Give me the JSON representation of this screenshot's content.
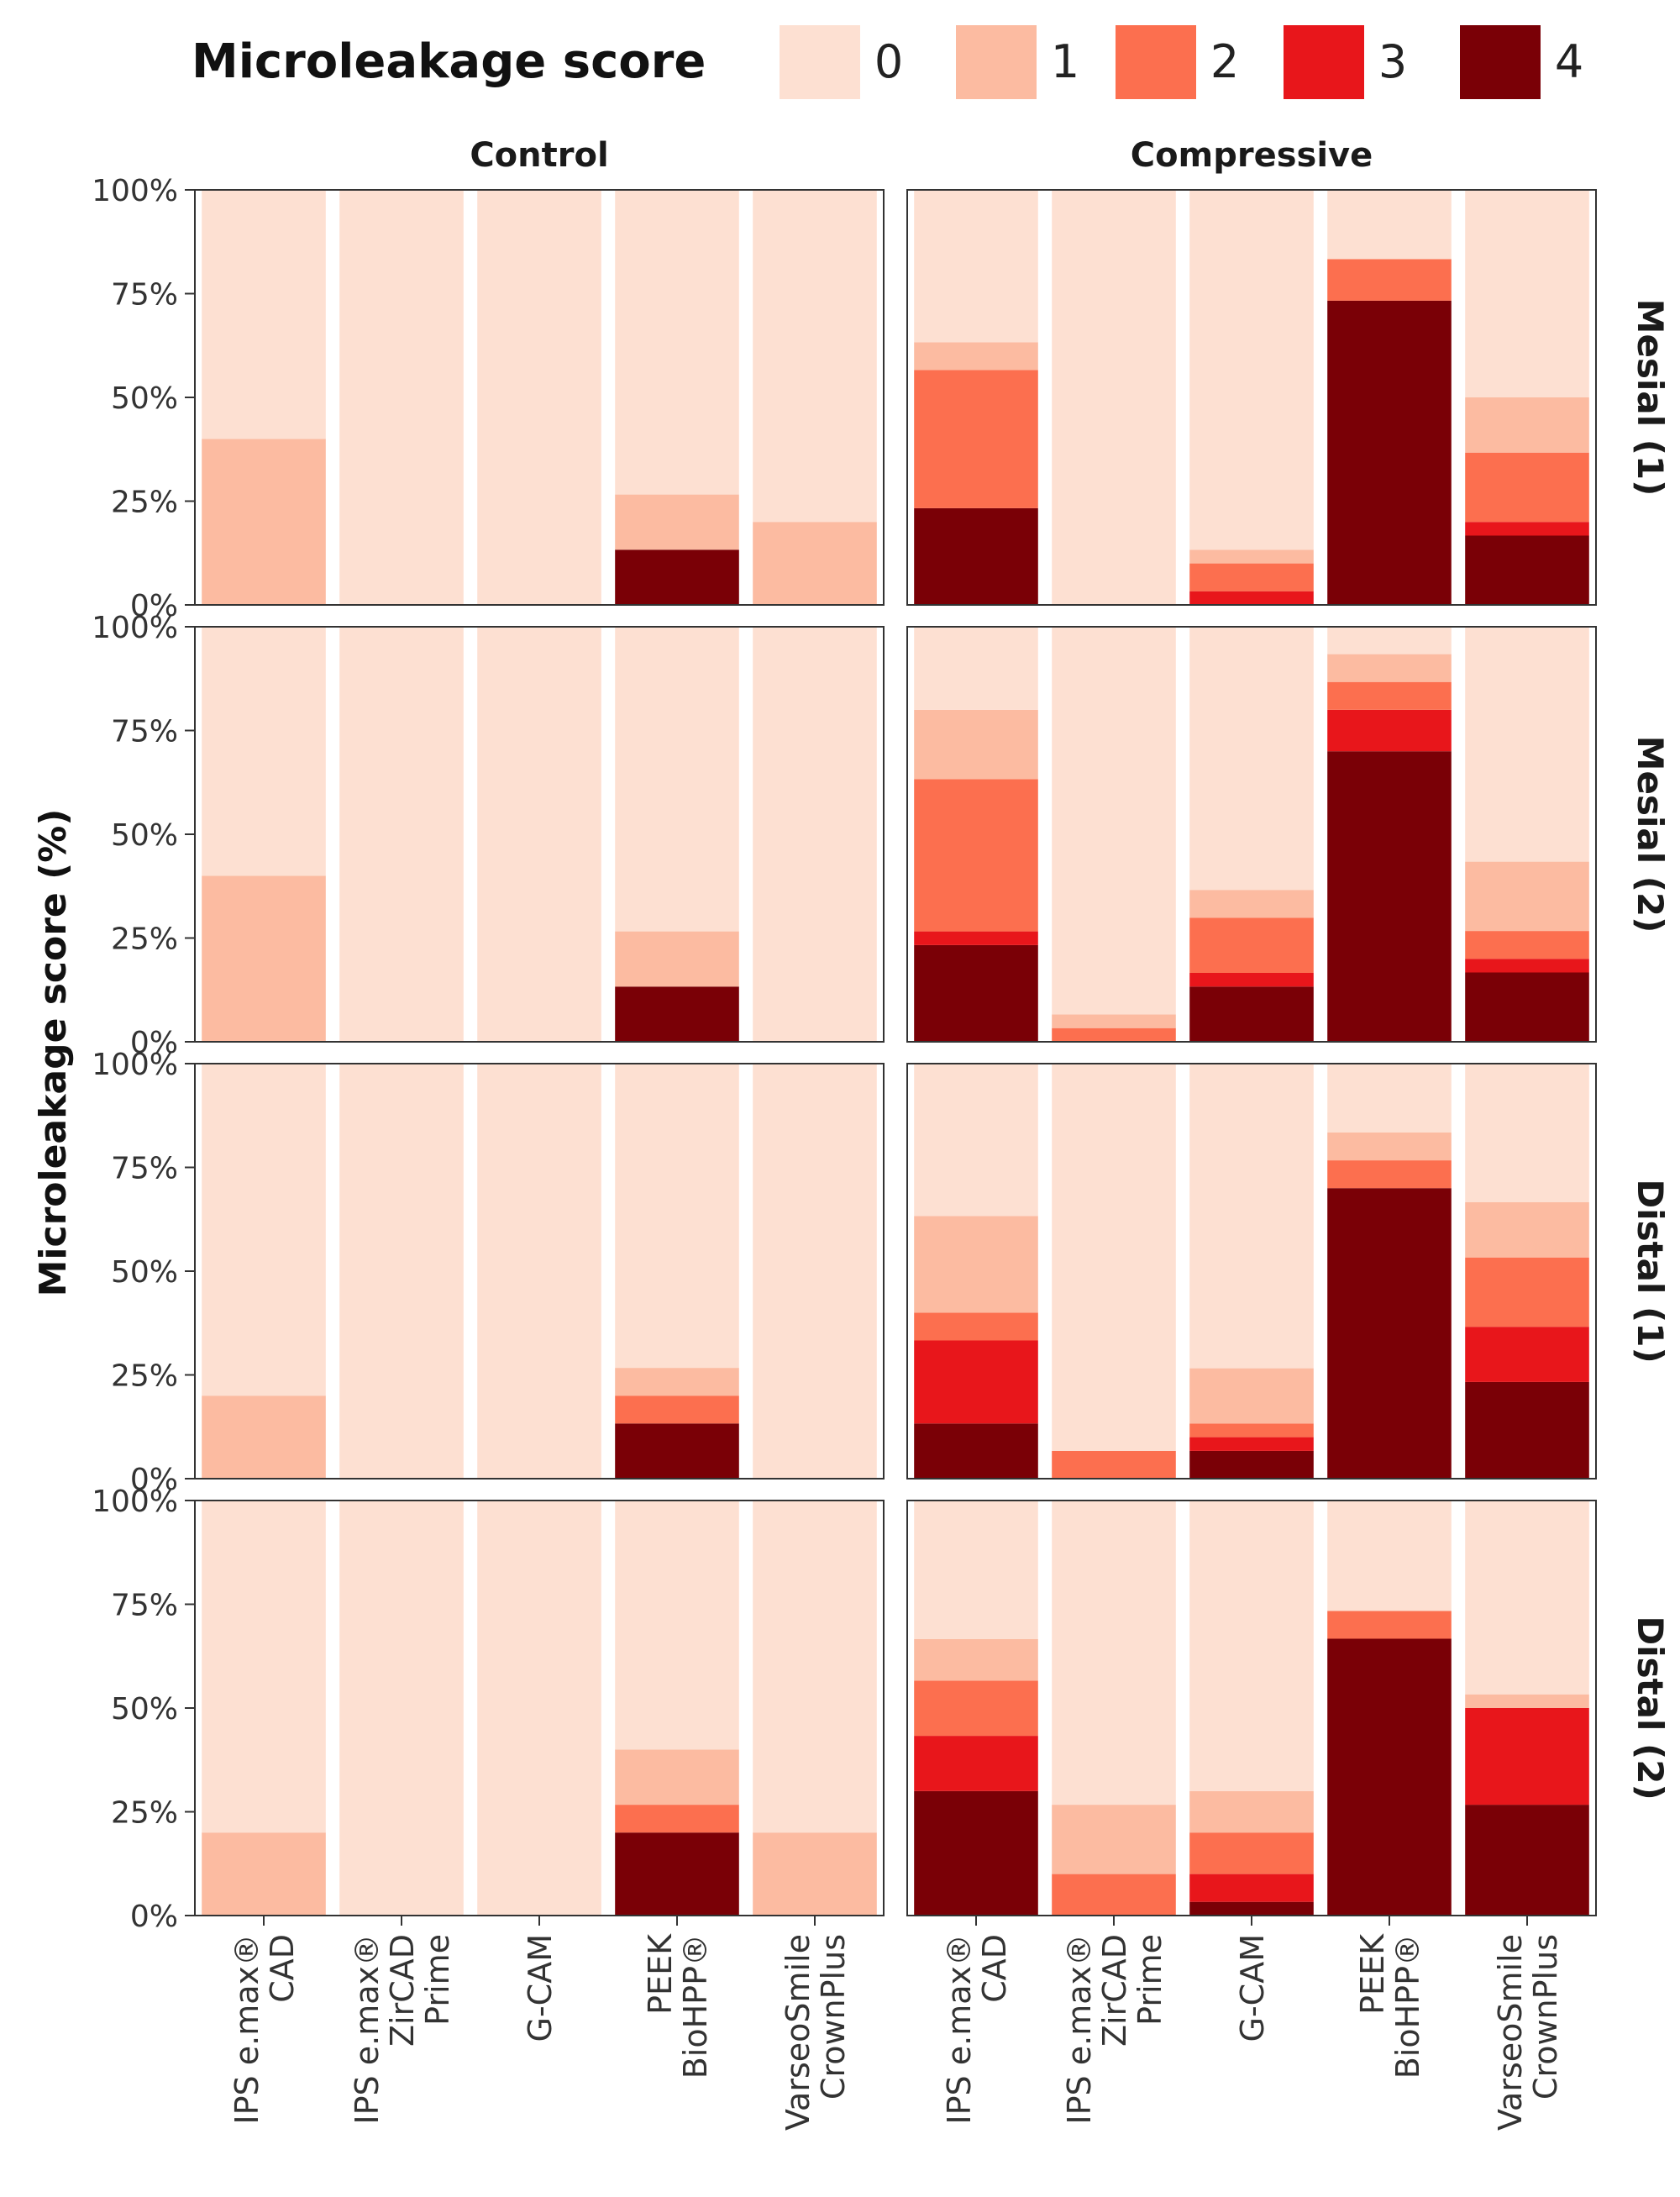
{
  "chart_data": {
    "type": "bar",
    "stacked": true,
    "title": "Microleakage score",
    "ylabel": "Microleakage score (%)",
    "xlabel": "",
    "ylim": [
      0,
      100
    ],
    "yticks": [
      "0%",
      "25%",
      "50%",
      "75%",
      "100%"
    ],
    "legend": {
      "title": "Microleakage score",
      "position": "top",
      "entries": [
        {
          "label": "0",
          "color": "#fde0d2"
        },
        {
          "label": "1",
          "color": "#fcbba1"
        },
        {
          "label": "2",
          "color": "#fc6f4f"
        },
        {
          "label": "3",
          "color": "#e8161b"
        },
        {
          "label": "4",
          "color": "#7a0006"
        }
      ]
    },
    "columns": [
      "Control",
      "Compressive"
    ],
    "rows": [
      "Mesial (1)",
      "Mesial (2)",
      "Distal (1)",
      "Distal (2)"
    ],
    "categories": [
      [
        "IPS e.max®",
        "CAD"
      ],
      [
        "IPS e.max®",
        "ZirCAD",
        "Prime"
      ],
      [
        "G-CAM"
      ],
      [
        "PEEK",
        "BioHPP®"
      ],
      [
        "VarseoSmile",
        "CrownPlus"
      ]
    ],
    "score_order_bottom_to_top": [
      4,
      3,
      2,
      1,
      0
    ],
    "panels": [
      [
        {
          "bars": [
            [
              0,
              0,
              0,
              40,
              60
            ],
            [
              0,
              0,
              0,
              0,
              100
            ],
            [
              0,
              0,
              0,
              0,
              100
            ],
            [
              13.3,
              0,
              0,
              13.3,
              73.4
            ],
            [
              0,
              0,
              0,
              20,
              80
            ]
          ]
        },
        {
          "bars": [
            [
              23.3,
              0,
              33.3,
              6.7,
              36.7
            ],
            [
              0,
              0,
              0,
              0,
              100
            ],
            [
              0,
              3.3,
              6.7,
              3.3,
              86.7
            ],
            [
              73.3,
              0,
              10,
              0,
              16.7
            ],
            [
              16.7,
              3.3,
              16.7,
              13.3,
              50
            ]
          ]
        }
      ],
      [
        {
          "bars": [
            [
              0,
              0,
              0,
              40,
              60
            ],
            [
              0,
              0,
              0,
              0,
              100
            ],
            [
              0,
              0,
              0,
              0,
              100
            ],
            [
              13.3,
              0,
              0,
              13.3,
              73.4
            ],
            [
              0,
              0,
              0,
              0,
              100
            ]
          ]
        },
        {
          "bars": [
            [
              23.3,
              3.3,
              36.7,
              16.7,
              20
            ],
            [
              0,
              0,
              3.3,
              3.3,
              93.4
            ],
            [
              13.3,
              3.3,
              13.3,
              6.7,
              63.4
            ],
            [
              70,
              10,
              6.7,
              6.7,
              6.6
            ],
            [
              16.7,
              3.3,
              6.7,
              16.7,
              56.6
            ]
          ]
        }
      ],
      [
        {
          "bars": [
            [
              0,
              0,
              0,
              20,
              80
            ],
            [
              0,
              0,
              0,
              0,
              100
            ],
            [
              0,
              0,
              0,
              0,
              100
            ],
            [
              13.3,
              0,
              6.7,
              6.7,
              73.3
            ],
            [
              0,
              0,
              0,
              0,
              100
            ]
          ]
        },
        {
          "bars": [
            [
              13.3,
              20,
              6.7,
              23.3,
              36.7
            ],
            [
              0,
              0,
              6.7,
              0,
              93.3
            ],
            [
              6.7,
              3.3,
              3.3,
              13.3,
              73.4
            ],
            [
              70,
              0,
              6.7,
              6.7,
              16.6
            ],
            [
              23.3,
              13.3,
              16.7,
              13.3,
              33.4
            ]
          ]
        }
      ],
      [
        {
          "bars": [
            [
              0,
              0,
              0,
              20,
              80
            ],
            [
              0,
              0,
              0,
              0,
              100
            ],
            [
              0,
              0,
              0,
              0,
              100
            ],
            [
              20,
              0,
              6.7,
              13.3,
              60
            ],
            [
              0,
              0,
              0,
              20,
              80
            ]
          ]
        },
        {
          "bars": [
            [
              30,
              13.3,
              13.3,
              10,
              33.4
            ],
            [
              0,
              0,
              10,
              16.7,
              73.3
            ],
            [
              3.3,
              6.7,
              10,
              10,
              70
            ],
            [
              66.7,
              0,
              6.7,
              0,
              26.6
            ],
            [
              26.7,
              23.3,
              0,
              3.3,
              46.7
            ]
          ]
        }
      ]
    ]
  }
}
